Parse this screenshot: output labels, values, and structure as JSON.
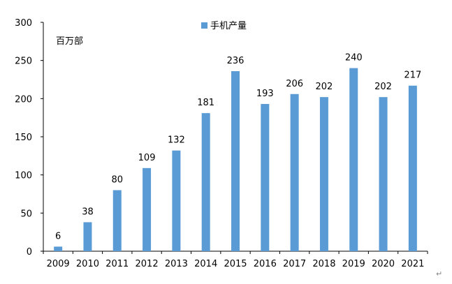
{
  "chart_data": {
    "type": "bar",
    "categories": [
      "2009",
      "2010",
      "2011",
      "2012",
      "2013",
      "2014",
      "2015",
      "2016",
      "2017",
      "2018",
      "2019",
      "2020",
      "2021"
    ],
    "series": [
      {
        "name": "手机产量",
        "values": [
          6,
          38,
          80,
          109,
          132,
          181,
          236,
          193,
          206,
          202,
          240,
          202,
          217
        ]
      }
    ],
    "unit_label": "百万部",
    "ylim": [
      0,
      300
    ],
    "yticks": [
      0,
      50,
      100,
      150,
      200,
      250,
      300
    ],
    "grid": false,
    "legend_position": "top-center",
    "bar_color": "#5b9bd5"
  },
  "page_mark": "↵"
}
